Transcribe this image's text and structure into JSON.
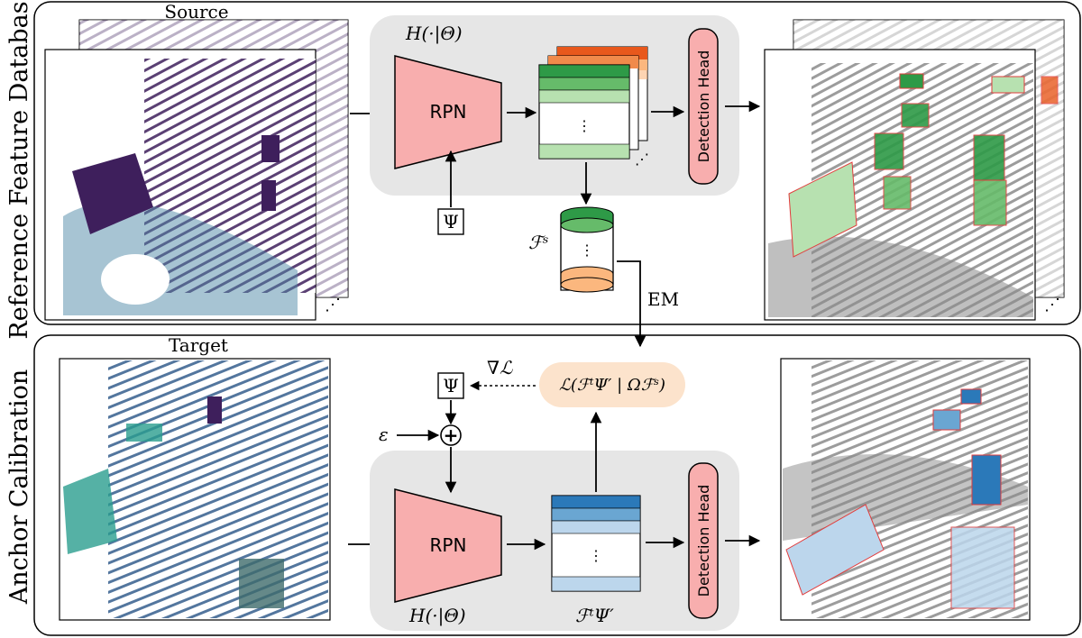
{
  "row_labels": {
    "top": "Reference Feature Database",
    "bottom": "Anchor Calibration"
  },
  "captions": {
    "source": "Source",
    "target": "Target"
  },
  "blocks": {
    "rpn_label": "RPN",
    "detection_head_label": "Detection Head",
    "h_theta_label": "H(·|Θ)",
    "psi_label": "Ψ",
    "epsilon_label": "ε",
    "plus_symbol": "+",
    "em_label": "EM",
    "grad_label": "∇ℒ",
    "loss_label": "ℒ(ℱᵗΨ′ | Ωℱˢ)",
    "fs_label": "ℱˢ",
    "ft_label": "ℱᵗΨ′",
    "vdots": "⋮",
    "ellipsis": "⋰"
  },
  "colors": {
    "rpn_fill": "#f8aeae",
    "head_fill": "#f8aeae",
    "panel_fill": "#e6e6e6",
    "loss_fill": "#fce3cc",
    "green_dark": "#2e9a47",
    "green_mid": "#66bb6a",
    "green_light": "#b7e1b0",
    "orange_dark": "#e8581c",
    "orange_light": "#fbb77e",
    "blue_dark": "#2b79b9",
    "blue_mid": "#6aa6d2",
    "blue_light": "#bcd6ec",
    "lidar_purple": "#3e1f5c",
    "lidar_teal": "#2a9d8f",
    "point_gray": "#8a8a8a",
    "box_red": "#e23b3b"
  }
}
